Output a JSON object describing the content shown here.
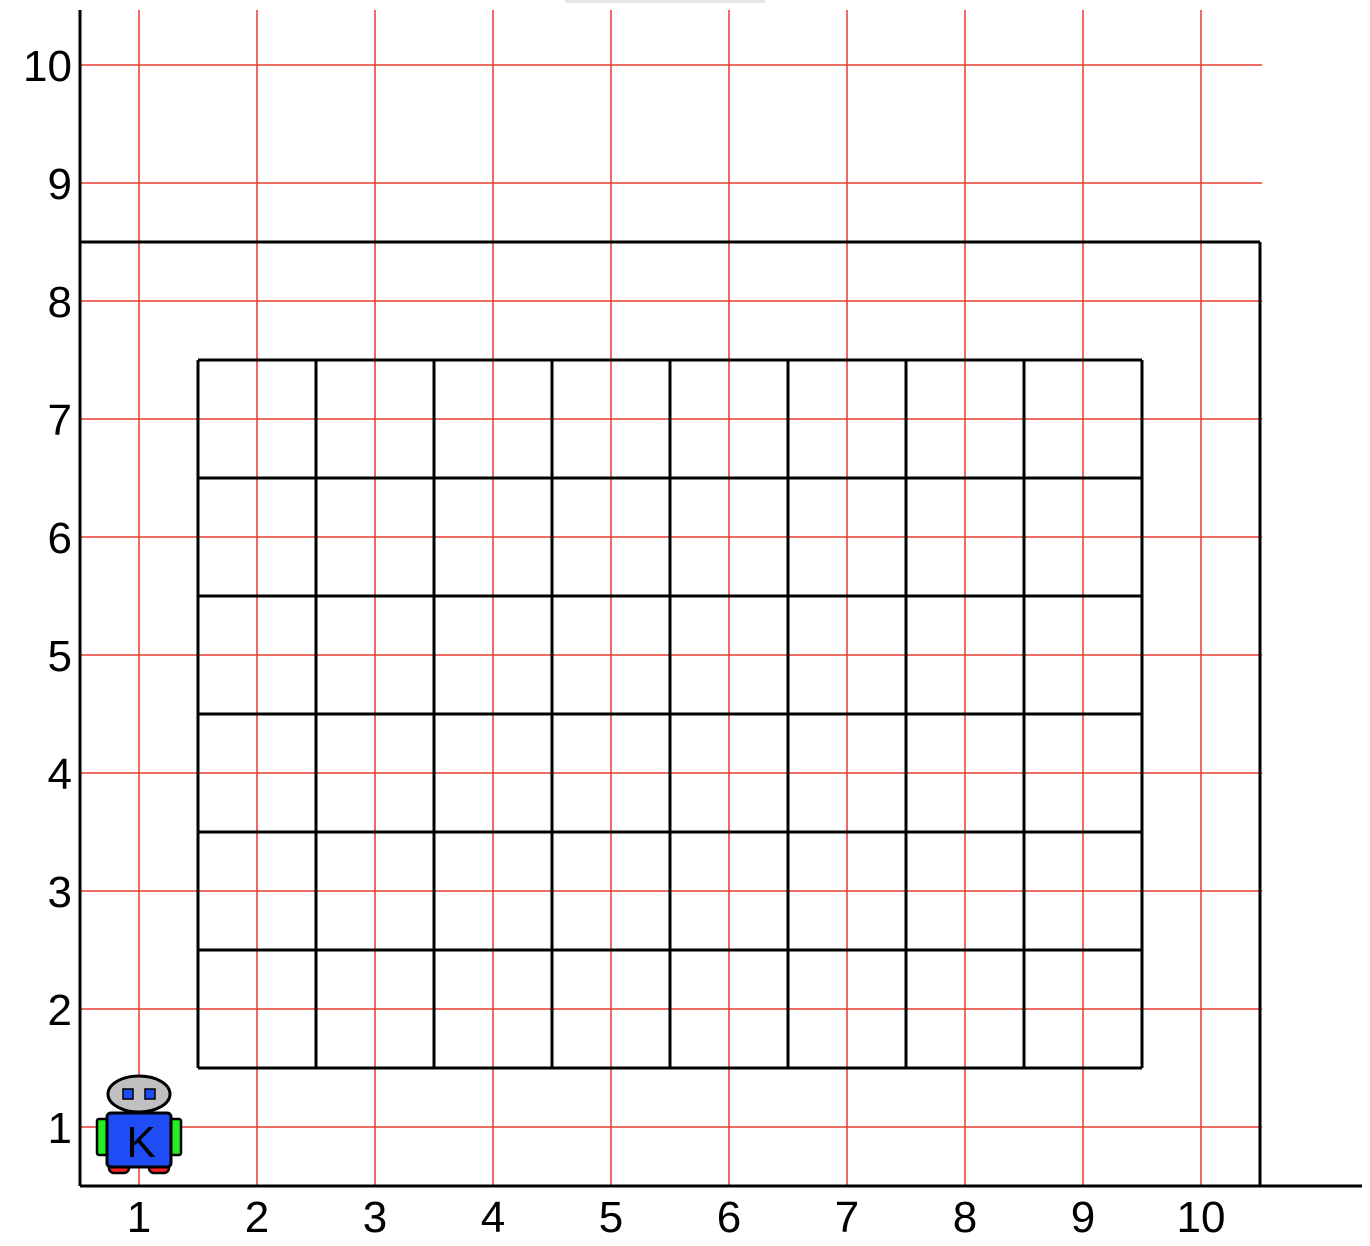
{
  "world": {
    "x_labels": [
      "1",
      "2",
      "3",
      "4",
      "5",
      "6",
      "7",
      "8",
      "9",
      "10"
    ],
    "y_labels": [
      "1",
      "2",
      "3",
      "4",
      "5",
      "6",
      "7",
      "8",
      "9",
      "10"
    ],
    "avenues": 10,
    "streets": 10,
    "colors": {
      "grid_lines": "#e8392f",
      "walls": "#000000",
      "background": "#ffffff"
    }
  },
  "walls": {
    "outer_boundary": {
      "description_free": true,
      "corners": [
        [
          0.5,
          0.5
        ],
        [
          10.5,
          0.5
        ],
        [
          10.5,
          8.5
        ],
        [
          0.5,
          8.5
        ]
      ]
    },
    "inner_block": {
      "x_range": [
        1.5,
        9.5
      ],
      "y_range": [
        1.5,
        7.5
      ],
      "columns": 8,
      "rows": 6
    }
  },
  "robot": {
    "avenue": 1,
    "street": 1,
    "letter": "K",
    "colors": {
      "body": "#1f4df5",
      "head": "#c0c0c0",
      "eyes": "#1f4df5",
      "arms": "#22ee22",
      "wheels": "#ff2222"
    }
  },
  "floor_line": {
    "extends_past_world": true
  }
}
